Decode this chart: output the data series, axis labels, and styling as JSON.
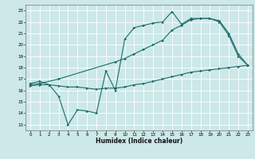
{
  "title": "",
  "xlabel": "Humidex (Indice chaleur)",
  "bg_color": "#cce8e8",
  "line_color": "#1a6b6b",
  "grid_color": "#ffffff",
  "xlim": [
    -0.5,
    23.5
  ],
  "ylim": [
    12.5,
    23.5
  ],
  "yticks": [
    13,
    14,
    15,
    16,
    17,
    18,
    19,
    20,
    21,
    22,
    23
  ],
  "xticks": [
    0,
    1,
    2,
    3,
    4,
    5,
    6,
    7,
    8,
    9,
    10,
    11,
    12,
    13,
    14,
    15,
    16,
    17,
    18,
    19,
    20,
    21,
    22,
    23
  ],
  "line1_x": [
    0,
    1,
    2,
    3,
    4,
    5,
    6,
    7,
    8,
    9,
    10,
    11,
    12,
    13,
    14,
    15,
    16,
    17,
    18,
    19,
    20,
    21,
    22,
    23
  ],
  "line1_y": [
    16.6,
    16.8,
    16.5,
    15.5,
    13.0,
    14.3,
    14.2,
    14.0,
    17.7,
    16.0,
    20.5,
    21.5,
    21.7,
    21.9,
    22.0,
    22.9,
    21.8,
    22.3,
    22.3,
    22.3,
    22.0,
    20.8,
    19.0,
    18.2
  ],
  "line2_x": [
    0,
    1,
    3,
    9,
    10,
    11,
    12,
    13,
    14,
    15,
    16,
    17,
    18,
    19,
    20,
    21,
    22,
    23
  ],
  "line2_y": [
    16.5,
    16.6,
    17.0,
    18.5,
    18.8,
    19.2,
    19.6,
    20.0,
    20.4,
    21.3,
    21.7,
    22.2,
    22.3,
    22.3,
    22.1,
    21.0,
    19.2,
    18.2
  ],
  "line3_x": [
    0,
    1,
    2,
    3,
    4,
    5,
    6,
    7,
    8,
    9,
    10,
    11,
    12,
    13,
    14,
    15,
    16,
    17,
    18,
    19,
    20,
    21,
    22,
    23
  ],
  "line3_y": [
    16.4,
    16.5,
    16.5,
    16.4,
    16.3,
    16.3,
    16.2,
    16.1,
    16.2,
    16.2,
    16.3,
    16.5,
    16.6,
    16.8,
    17.0,
    17.2,
    17.4,
    17.6,
    17.7,
    17.8,
    17.9,
    18.0,
    18.1,
    18.2
  ]
}
